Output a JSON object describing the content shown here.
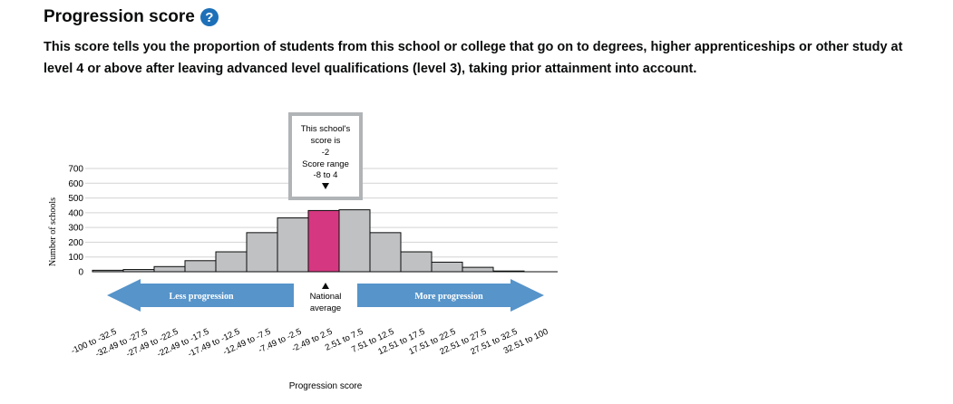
{
  "header": {
    "title": "Progression score",
    "help_icon": "question-mark-icon",
    "description": "This score tells you the proportion of students from this school or college that go on to degrees, higher apprenticeships or other study at level 4 or above after leaving advanced level qualifications (level 3), taking prior attainment into account."
  },
  "callout": {
    "line1": "This school's",
    "line2": "score is",
    "line3": "-2",
    "line4": "Score range",
    "line5": "-8 to 4"
  },
  "scale": {
    "left_label": "Less progression",
    "right_label": "More progression",
    "center_line1": "National",
    "center_line2": "average"
  },
  "colors": {
    "bar": "#bfc1c3",
    "highlight": "#d53880",
    "arrow": "#5694ca"
  },
  "chart_data": {
    "type": "bar",
    "xlabel": "Progression score",
    "ylabel": "Number of schools",
    "ylim": [
      0,
      700
    ],
    "yticks": [
      0,
      100,
      200,
      300,
      400,
      500,
      600,
      700
    ],
    "categories": [
      "-100 to -32.5",
      "-32.49 to -27.5",
      "-27.49 to -22.5",
      "-22.49 to -17.5",
      "-17.49 to -12.5",
      "-12.49 to -7.5",
      "-7.49 to -2.5",
      "-2.49 to 2.5",
      "2.51 to 7.5",
      "7.51 to 12.5",
      "12.51 to 17.5",
      "17.51 to 22.5",
      "22.51 to 27.5",
      "27.51 to 32.5",
      "32.51 to 100"
    ],
    "values": [
      10,
      15,
      35,
      75,
      135,
      265,
      365,
      415,
      420,
      265,
      135,
      65,
      30,
      5,
      0
    ],
    "highlight_index": 7,
    "grid": true
  }
}
